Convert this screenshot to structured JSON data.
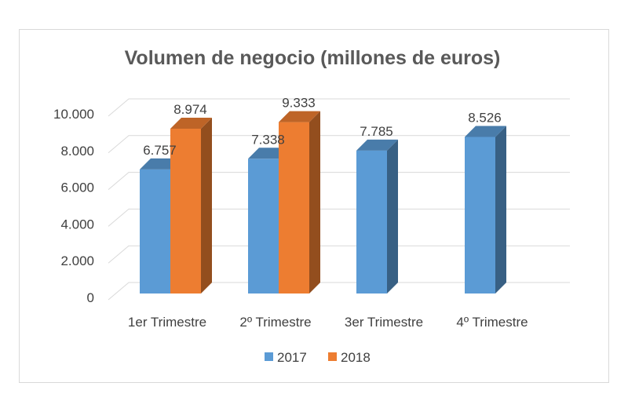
{
  "chart_data": {
    "type": "bar",
    "title": "Volumen de negocio (millones de euros)",
    "categories": [
      "1er Trimestre",
      "2º Trimestre",
      "3er Trimestre",
      "4º Trimestre"
    ],
    "series": [
      {
        "name": "2017",
        "values": [
          6757,
          7338,
          7785,
          8526
        ],
        "labels": [
          "6.757",
          "7.338",
          "7.785",
          "8.526"
        ],
        "color": "#5b9bd5"
      },
      {
        "name": "2018",
        "values": [
          8974,
          9333,
          null,
          null
        ],
        "labels": [
          "8.974",
          "9.333",
          "",
          ""
        ],
        "color": "#ed7d31"
      }
    ],
    "yticks": [
      0,
      2000,
      4000,
      6000,
      8000,
      10000
    ],
    "ytick_labels": [
      "0",
      "2.000",
      "4.000",
      "6.000",
      "8.000",
      "10.000"
    ],
    "ylim": [
      0,
      10000
    ],
    "xlabel": "",
    "ylabel": "",
    "grid": true,
    "legend_position": "bottom"
  }
}
